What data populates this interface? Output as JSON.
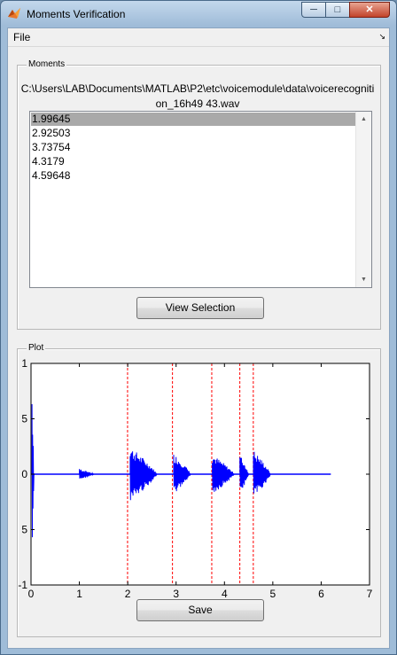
{
  "window": {
    "title": "Moments Verification",
    "controls": [
      "minimize",
      "maximize",
      "close"
    ],
    "icon": "matlab-icon"
  },
  "menu": {
    "file": "File",
    "overflow_icon": "chevron-icon"
  },
  "moments_panel": {
    "title": "Moments",
    "file_path": "C:\\Users\\LAB\\Documents\\MATLAB\\P2\\etc\\voicemodule\\data\\voicerecognition_16h49 43.wav",
    "list_items": [
      "1.99645",
      "2.92503",
      "3.73754",
      "4.3179",
      "4.59648"
    ],
    "selected_index": 0,
    "view_button": "View Selection"
  },
  "plot_panel": {
    "title": "Plot",
    "save_button": "Save"
  },
  "chart_data": {
    "type": "line",
    "xlim": [
      0,
      7
    ],
    "ylim": [
      -1,
      1
    ],
    "x_ticks": [
      "0",
      "1",
      "2",
      "3",
      "4",
      "5",
      "6",
      "7"
    ],
    "y_ticks": [
      "1",
      "5",
      "0",
      "5",
      "-1"
    ],
    "grid": false,
    "signal_color": "#0000ff",
    "marker_color": "#ff0000",
    "markers_x": [
      1.99645,
      2.92503,
      3.73754,
      4.3179,
      4.59648
    ],
    "signal_extent": [
      0,
      6.2
    ],
    "bursts": [
      {
        "x": [
          0.02,
          0.06
        ],
        "amp": 0.82
      },
      {
        "x": [
          1.0,
          1.3
        ],
        "amp": 0.05
      },
      {
        "x": [
          2.05,
          2.6
        ],
        "amp": 0.25
      },
      {
        "x": [
          2.95,
          3.3
        ],
        "amp": 0.19
      },
      {
        "x": [
          3.75,
          4.2
        ],
        "amp": 0.18
      },
      {
        "x": [
          4.32,
          4.5
        ],
        "amp": 0.18
      },
      {
        "x": [
          4.6,
          4.95
        ],
        "amp": 0.22
      }
    ]
  }
}
